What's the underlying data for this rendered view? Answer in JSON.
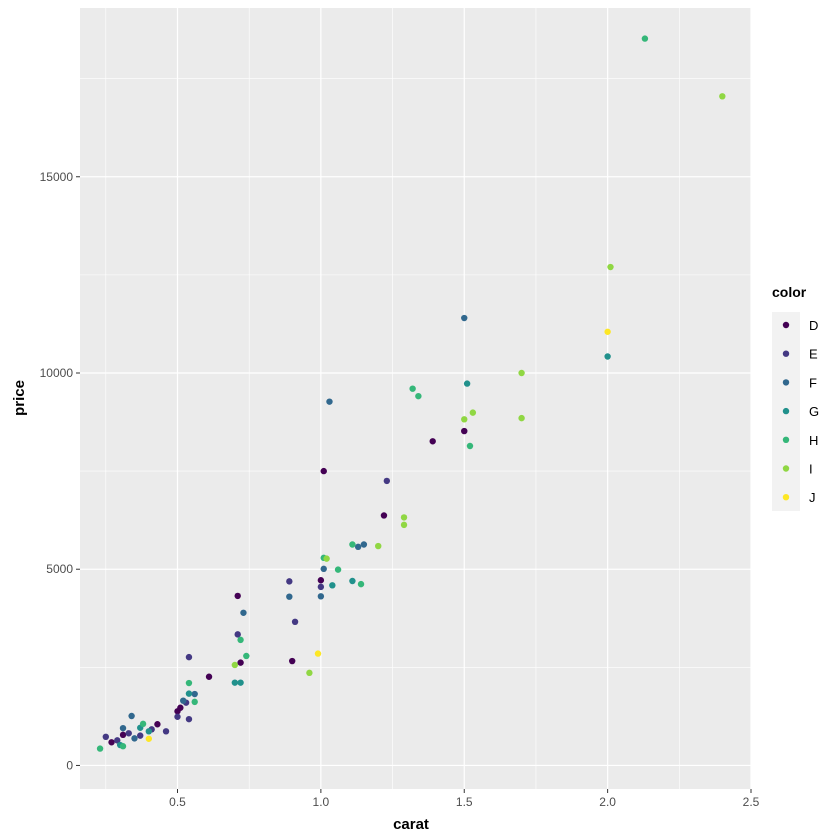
{
  "chart_data": {
    "type": "scatter",
    "xlabel": "carat",
    "ylabel": "price",
    "xlim": [
      0.16,
      2.5
    ],
    "ylim": [
      -600,
      19300
    ],
    "x_ticks": [
      0.5,
      1.0,
      1.5,
      2.0,
      2.5
    ],
    "x_tick_labels": [
      "0.5",
      "1.0",
      "1.5",
      "2.0",
      "2.5"
    ],
    "y_ticks": [
      0,
      5000,
      10000,
      15000
    ],
    "y_tick_labels": [
      "0",
      "5000",
      "10000",
      "15000"
    ],
    "grid": true,
    "legend": {
      "title": "color",
      "position": "right"
    },
    "series": [
      {
        "name": "D",
        "color": "#440154",
        "points": [
          [
            0.27,
            590
          ],
          [
            0.31,
            780
          ],
          [
            0.43,
            1050
          ],
          [
            0.5,
            1380
          ],
          [
            0.51,
            1470
          ],
          [
            0.61,
            2260
          ],
          [
            0.71,
            4320
          ],
          [
            0.72,
            2620
          ],
          [
            0.9,
            2660
          ],
          [
            1.0,
            4720
          ],
          [
            1.01,
            7500
          ],
          [
            1.22,
            6370
          ],
          [
            1.39,
            8260
          ],
          [
            1.5,
            8520
          ]
        ]
      },
      {
        "name": "E",
        "color": "#443983",
        "points": [
          [
            0.25,
            730
          ],
          [
            0.29,
            640
          ],
          [
            0.33,
            820
          ],
          [
            0.37,
            760
          ],
          [
            0.41,
            920
          ],
          [
            0.46,
            870
          ],
          [
            0.5,
            1240
          ],
          [
            0.53,
            1600
          ],
          [
            0.54,
            1180
          ],
          [
            0.54,
            2760
          ],
          [
            0.71,
            3340
          ],
          [
            0.89,
            4690
          ],
          [
            0.91,
            3660
          ],
          [
            1.0,
            4550
          ],
          [
            1.23,
            7250
          ]
        ]
      },
      {
        "name": "F",
        "color": "#31688e",
        "points": [
          [
            0.31,
            950
          ],
          [
            0.34,
            1260
          ],
          [
            0.35,
            690
          ],
          [
            0.52,
            1650
          ],
          [
            0.56,
            1820
          ],
          [
            0.73,
            3890
          ],
          [
            0.89,
            4300
          ],
          [
            1.0,
            4310
          ],
          [
            1.01,
            5010
          ],
          [
            1.03,
            9270
          ],
          [
            1.13,
            5570
          ],
          [
            1.15,
            5630
          ],
          [
            1.5,
            11400
          ]
        ]
      },
      {
        "name": "G",
        "color": "#21918c",
        "points": [
          [
            0.3,
            520
          ],
          [
            0.37,
            960
          ],
          [
            0.4,
            870
          ],
          [
            0.54,
            1830
          ],
          [
            0.7,
            2110
          ],
          [
            0.72,
            2110
          ],
          [
            1.04,
            4590
          ],
          [
            1.11,
            4700
          ],
          [
            1.51,
            9730
          ],
          [
            2.0,
            10420
          ]
        ]
      },
      {
        "name": "H",
        "color": "#35b779",
        "points": [
          [
            0.23,
            430
          ],
          [
            0.31,
            490
          ],
          [
            0.38,
            1060
          ],
          [
            0.54,
            2100
          ],
          [
            0.56,
            1620
          ],
          [
            0.72,
            3200
          ],
          [
            0.74,
            2790
          ],
          [
            1.01,
            5290
          ],
          [
            1.06,
            4990
          ],
          [
            1.11,
            5630
          ],
          [
            1.14,
            4620
          ],
          [
            1.32,
            9600
          ],
          [
            1.34,
            9410
          ],
          [
            1.52,
            8140
          ],
          [
            2.13,
            18520
          ]
        ]
      },
      {
        "name": "I",
        "color": "#90d743",
        "points": [
          [
            0.7,
            2560
          ],
          [
            0.96,
            2360
          ],
          [
            1.02,
            5270
          ],
          [
            1.2,
            5590
          ],
          [
            1.29,
            6320
          ],
          [
            1.29,
            6130
          ],
          [
            1.5,
            8820
          ],
          [
            1.53,
            8990
          ],
          [
            1.7,
            10000
          ],
          [
            1.7,
            8850
          ],
          [
            2.01,
            12700
          ],
          [
            2.4,
            17050
          ]
        ]
      },
      {
        "name": "J",
        "color": "#fde725",
        "points": [
          [
            0.4,
            680
          ],
          [
            0.99,
            2850
          ],
          [
            2.0,
            11050
          ]
        ]
      }
    ]
  }
}
